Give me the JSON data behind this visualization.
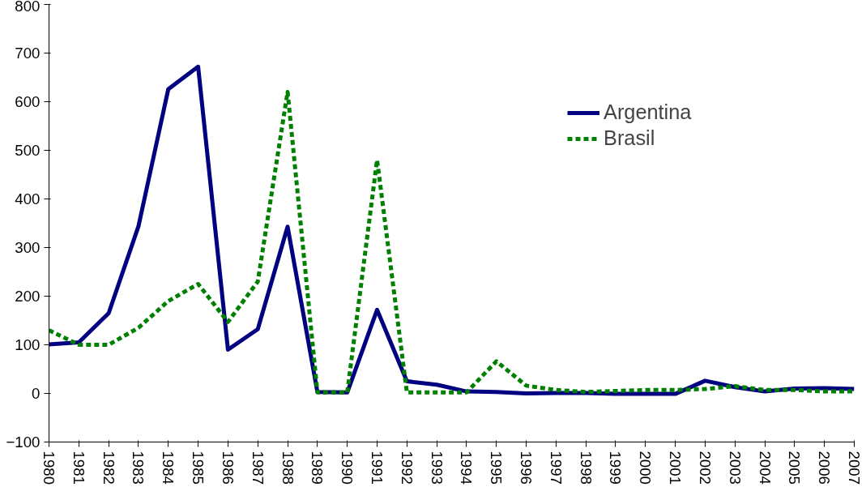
{
  "chart_data": {
    "type": "line",
    "categories": [
      "1980",
      "1981",
      "1982",
      "1983",
      "1984",
      "1985",
      "1986",
      "1987",
      "1988",
      "1989",
      "1990",
      "1991",
      "1992",
      "1993",
      "1994",
      "1995",
      "1996",
      "1997",
      "1998",
      "1999",
      "2000",
      "2001",
      "2002",
      "2003",
      "2004",
      "2005",
      "2006",
      "2007"
    ],
    "series": [
      {
        "name": "Argentina",
        "color": "#000080",
        "line_style": "solid",
        "values": [
          101,
          105,
          165,
          344,
          626,
          672,
          90,
          132,
          343,
          3,
          2,
          172,
          25,
          18,
          4,
          3,
          0,
          1,
          1,
          -1,
          -1,
          -1,
          26,
          13,
          4,
          10,
          11,
          9
        ]
      },
      {
        "name": "Brasil",
        "color": "#008000",
        "line_style": "dashed",
        "values": [
          130,
          100,
          100,
          135,
          190,
          225,
          147,
          230,
          620,
          2,
          2,
          480,
          2,
          2,
          2,
          66,
          16,
          7,
          3,
          5,
          7,
          7,
          9,
          15,
          7,
          7,
          4,
          4
        ]
      }
    ],
    "ylim": [
      -100,
      800
    ],
    "yticks": [
      -100,
      0,
      100,
      200,
      300,
      400,
      500,
      600,
      700,
      800
    ],
    "grid": false,
    "legend": "right",
    "marker": "none"
  }
}
